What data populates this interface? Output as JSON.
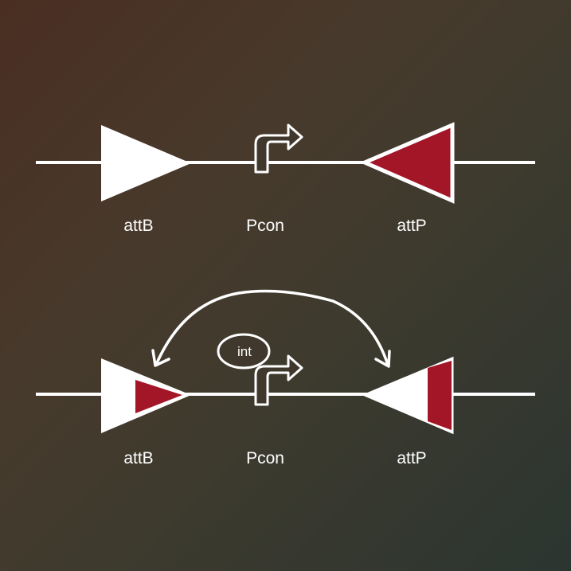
{
  "colors": {
    "line": "#ffffff",
    "site_red": "#a31628"
  },
  "top": {
    "attb_label": "attB",
    "pcon_label": "Pcon",
    "attp_label": "attP"
  },
  "bottom": {
    "attb_label": "attB",
    "pcon_label": "Pcon",
    "attp_label": "attP",
    "int_label": "int"
  }
}
